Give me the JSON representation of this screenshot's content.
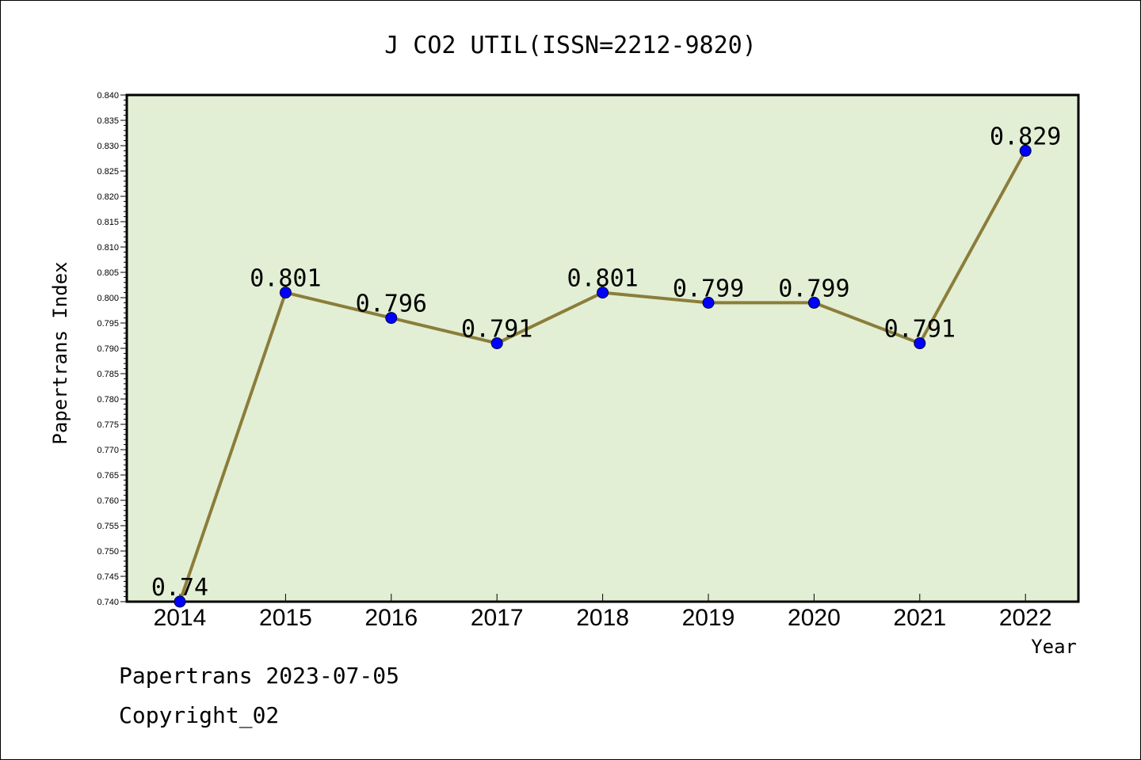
{
  "chart_data": {
    "type": "line",
    "title": "J CO2 UTIL(ISSN=2212-9820)",
    "xlabel": "Year",
    "ylabel": "Papertrans Index",
    "categories": [
      "2014",
      "2015",
      "2016",
      "2017",
      "2018",
      "2019",
      "2020",
      "2021",
      "2022"
    ],
    "values": [
      0.74,
      0.801,
      0.796,
      0.791,
      0.801,
      0.799,
      0.799,
      0.791,
      0.829
    ],
    "data_labels": [
      "0.74",
      "0.801",
      "0.796",
      "0.791",
      "0.801",
      "0.799",
      "0.799",
      "0.791",
      "0.829"
    ],
    "ylim": [
      0.74,
      0.84
    ],
    "yticks": [
      "0.740",
      "0.745",
      "0.750",
      "0.755",
      "0.760",
      "0.765",
      "0.770",
      "0.775",
      "0.780",
      "0.785",
      "0.790",
      "0.795",
      "0.800",
      "0.805",
      "0.810",
      "0.815",
      "0.820",
      "0.825",
      "0.830",
      "0.835",
      "0.840"
    ],
    "grid": false,
    "colors": {
      "line": "#8b7d3a",
      "marker": "#0000ff",
      "plot_background": "#e2efd5"
    }
  },
  "footer": {
    "line1": "Papertrans 2023-07-05",
    "line2": "Copyright_02"
  }
}
